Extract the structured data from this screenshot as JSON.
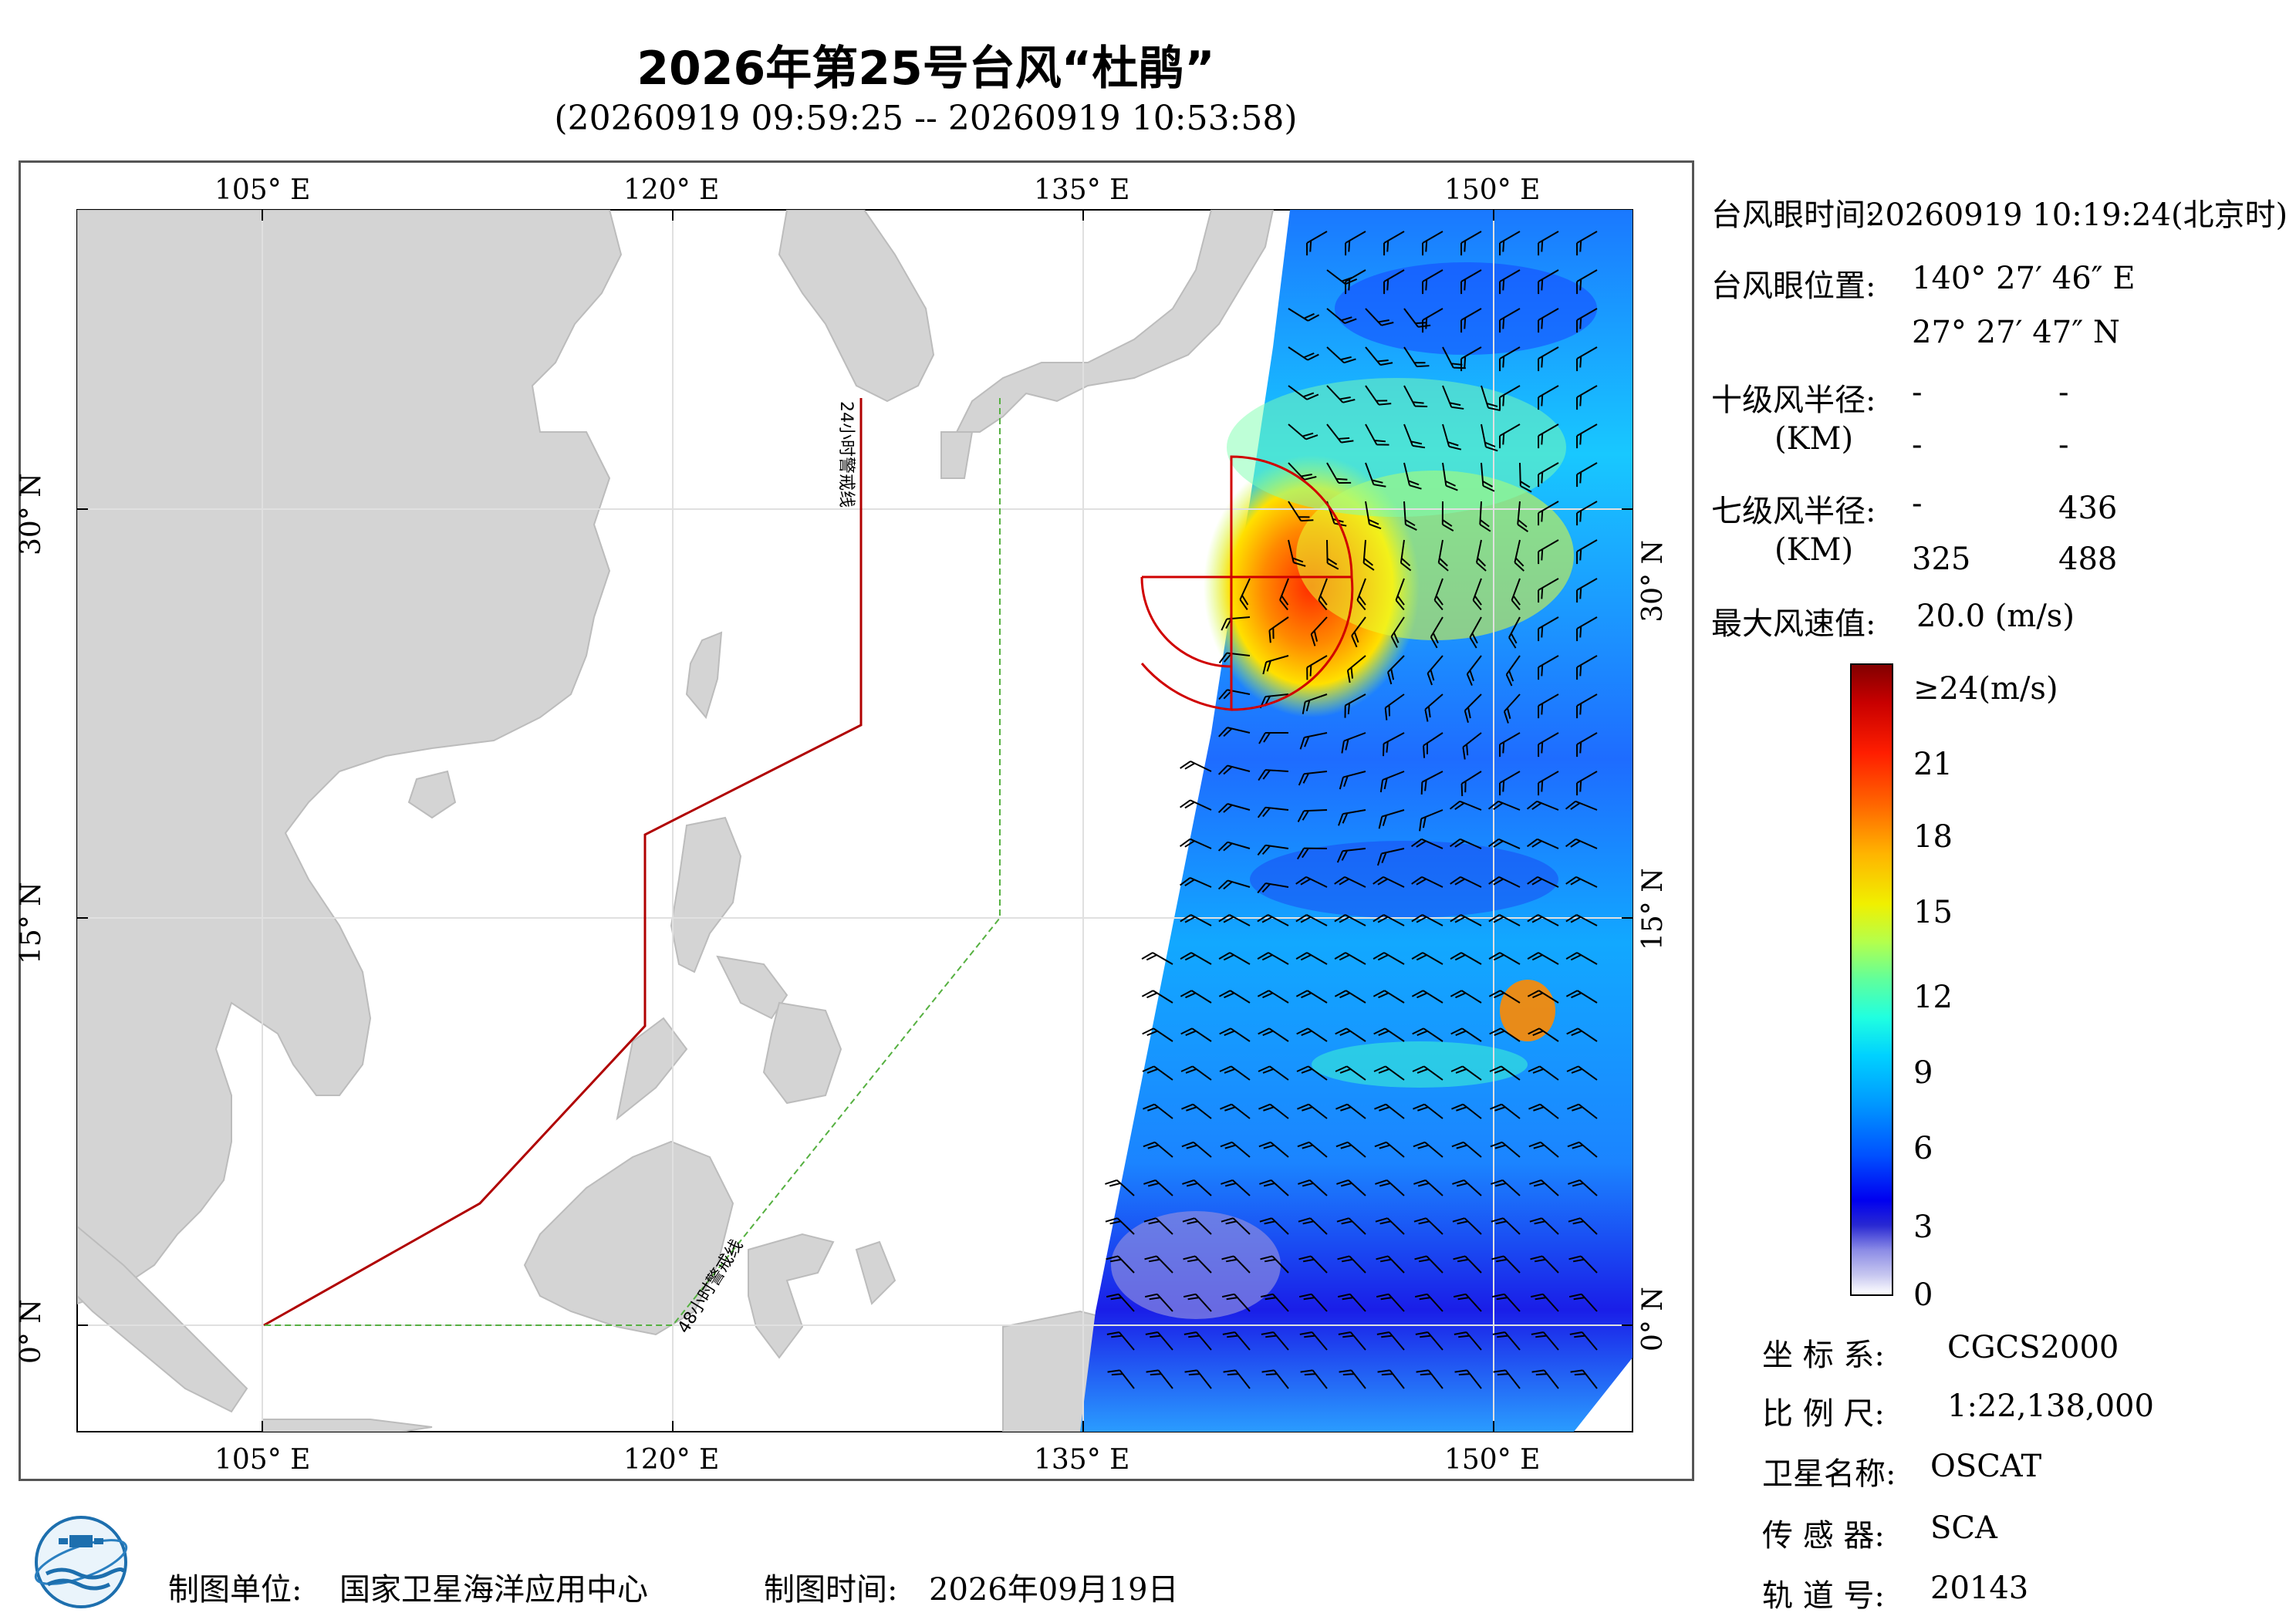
{
  "title": "2026年第25号台风“杜鹃”",
  "subtitle": "(20260919 09:59:25 -- 20260919 10:53:58)",
  "map": {
    "lon_labels": [
      "105° E",
      "120° E",
      "135° E",
      "150° E"
    ],
    "lat_labels": [
      "30° N",
      "15° N",
      "0° N"
    ],
    "line_24h": "24小时警戒线",
    "line_48h": "48小时警戒线"
  },
  "info": {
    "eye_time_label": "台风眼时间:",
    "eye_time_value": "20260919 10:19:24(北京时)",
    "eye_pos_label": "台风眼位置:",
    "eye_lon": "140° 27′ 46″ E",
    "eye_lat": "27° 27′ 47″ N",
    "r10_label": "十级风半径:",
    "r10_unit": "(KM)",
    "r10_values": [
      "-",
      "-",
      "-",
      "-"
    ],
    "r7_label": "七级风半径:",
    "r7_unit": "(KM)",
    "r7_values": [
      "-",
      "436",
      "325",
      "488"
    ],
    "max_wind_label": "最大风速值:",
    "max_wind_value": "20.0  (m/s)"
  },
  "colorbar": {
    "labels": [
      "≥24(m/s)",
      "21",
      "18",
      "15",
      "12",
      "9",
      "6",
      "3",
      "0"
    ],
    "colors": [
      "#820000",
      "#ff1e00",
      "#ff6400",
      "#f0f000",
      "#60ff9c",
      "#00d2ff",
      "#0050ff",
      "#2828d2",
      "#ffffff"
    ]
  },
  "meta": {
    "crs_label": "坐 标 系:",
    "crs_value": "CGCS2000",
    "scale_label": "比 例 尺:",
    "scale_value": "1:22,138,000",
    "sat_label": "卫星名称:",
    "sat_value": "OSCAT",
    "sensor_label": "传 感 器:",
    "sensor_value": "SCA",
    "orbit_label": "轨 道 号:",
    "orbit_value": "20143"
  },
  "footer": {
    "org_label": "制图单位:",
    "org_value": "国家卫星海洋应用中心",
    "date_label": "制图时间:",
    "date_value": "2026年09月19日"
  }
}
